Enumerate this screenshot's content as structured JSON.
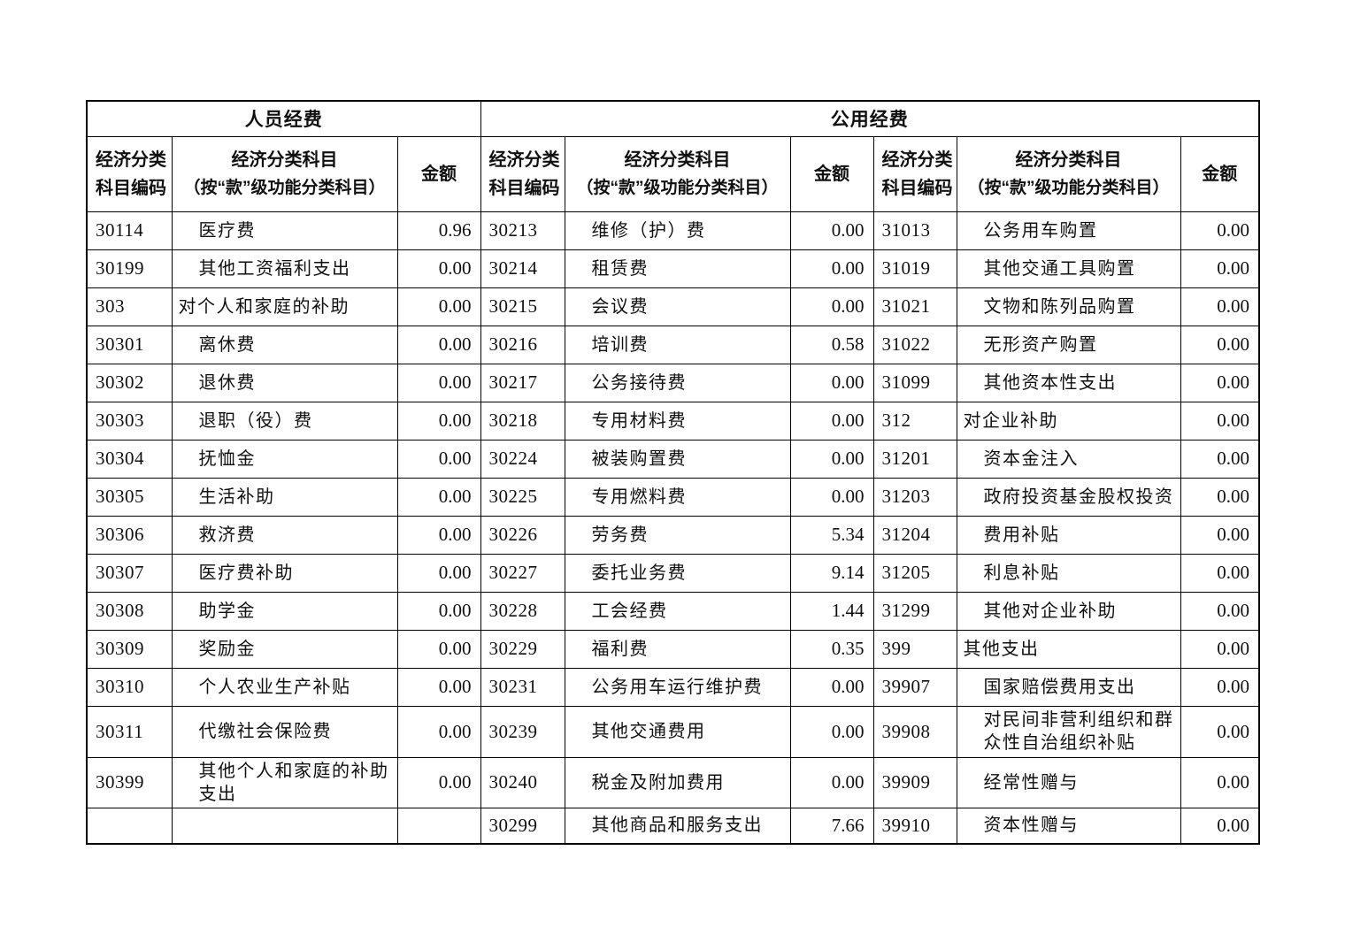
{
  "table": {
    "groups": [
      {
        "header": "人员经费"
      },
      {
        "header": "公用经费"
      }
    ],
    "column_headers": {
      "code": [
        "经济分类",
        "科目编码"
      ],
      "subject": [
        "经济分类科目",
        "（按“款”级功能分类科目）"
      ],
      "amount": "金额"
    },
    "rows": [
      {
        "left": {
          "code": "30114",
          "subject": "医疗费",
          "amount": "0.96",
          "indent": 1
        },
        "mid": {
          "code": "30213",
          "subject": "维修（护）费",
          "amount": "0.00",
          "indent": 1
        },
        "right": {
          "code": "31013",
          "subject": "公务用车购置",
          "amount": "0.00",
          "indent": 1
        }
      },
      {
        "left": {
          "code": "30199",
          "subject": "其他工资福利支出",
          "amount": "0.00",
          "indent": 1
        },
        "mid": {
          "code": "30214",
          "subject": "租赁费",
          "amount": "0.00",
          "indent": 1
        },
        "right": {
          "code": "31019",
          "subject": "其他交通工具购置",
          "amount": "0.00",
          "indent": 1
        }
      },
      {
        "left": {
          "code": "303",
          "subject": "对个人和家庭的补助",
          "amount": "0.00",
          "indent": 0
        },
        "mid": {
          "code": "30215",
          "subject": "会议费",
          "amount": "0.00",
          "indent": 1
        },
        "right": {
          "code": "31021",
          "subject": "文物和陈列品购置",
          "amount": "0.00",
          "indent": 1
        }
      },
      {
        "left": {
          "code": "30301",
          "subject": "离休费",
          "amount": "0.00",
          "indent": 1
        },
        "mid": {
          "code": "30216",
          "subject": "培训费",
          "amount": "0.58",
          "indent": 1
        },
        "right": {
          "code": "31022",
          "subject": "无形资产购置",
          "amount": "0.00",
          "indent": 1
        }
      },
      {
        "left": {
          "code": "30302",
          "subject": "退休费",
          "amount": "0.00",
          "indent": 1
        },
        "mid": {
          "code": "30217",
          "subject": "公务接待费",
          "amount": "0.00",
          "indent": 1
        },
        "right": {
          "code": "31099",
          "subject": "其他资本性支出",
          "amount": "0.00",
          "indent": 1
        }
      },
      {
        "left": {
          "code": "30303",
          "subject": "退职（役）费",
          "amount": "0.00",
          "indent": 1
        },
        "mid": {
          "code": "30218",
          "subject": "专用材料费",
          "amount": "0.00",
          "indent": 1
        },
        "right": {
          "code": "312",
          "subject": "对企业补助",
          "amount": "0.00",
          "indent": 0
        }
      },
      {
        "left": {
          "code": "30304",
          "subject": "抚恤金",
          "amount": "0.00",
          "indent": 1
        },
        "mid": {
          "code": "30224",
          "subject": "被装购置费",
          "amount": "0.00",
          "indent": 1
        },
        "right": {
          "code": "31201",
          "subject": "资本金注入",
          "amount": "0.00",
          "indent": 1
        }
      },
      {
        "left": {
          "code": "30305",
          "subject": "生活补助",
          "amount": "0.00",
          "indent": 1
        },
        "mid": {
          "code": "30225",
          "subject": "专用燃料费",
          "amount": "0.00",
          "indent": 1
        },
        "right": {
          "code": "31203",
          "subject": "政府投资基金股权投资",
          "amount": "0.00",
          "indent": 1
        }
      },
      {
        "left": {
          "code": "30306",
          "subject": "救济费",
          "amount": "0.00",
          "indent": 1
        },
        "mid": {
          "code": "30226",
          "subject": "劳务费",
          "amount": "5.34",
          "indent": 1
        },
        "right": {
          "code": "31204",
          "subject": "费用补贴",
          "amount": "0.00",
          "indent": 1
        }
      },
      {
        "left": {
          "code": "30307",
          "subject": "医疗费补助",
          "amount": "0.00",
          "indent": 1
        },
        "mid": {
          "code": "30227",
          "subject": "委托业务费",
          "amount": "9.14",
          "indent": 1
        },
        "right": {
          "code": "31205",
          "subject": "利息补贴",
          "amount": "0.00",
          "indent": 1
        }
      },
      {
        "left": {
          "code": "30308",
          "subject": "助学金",
          "amount": "0.00",
          "indent": 1
        },
        "mid": {
          "code": "30228",
          "subject": "工会经费",
          "amount": "1.44",
          "indent": 1
        },
        "right": {
          "code": "31299",
          "subject": "其他对企业补助",
          "amount": "0.00",
          "indent": 1
        }
      },
      {
        "left": {
          "code": "30309",
          "subject": "奖励金",
          "amount": "0.00",
          "indent": 1
        },
        "mid": {
          "code": "30229",
          "subject": "福利费",
          "amount": "0.35",
          "indent": 1
        },
        "right": {
          "code": "399",
          "subject": "其他支出",
          "amount": "0.00",
          "indent": 0
        }
      },
      {
        "left": {
          "code": "30310",
          "subject": "个人农业生产补贴",
          "amount": "0.00",
          "indent": 1
        },
        "mid": {
          "code": "30231",
          "subject": "公务用车运行维护费",
          "amount": "0.00",
          "indent": 1
        },
        "right": {
          "code": "39907",
          "subject": "国家赔偿费用支出",
          "amount": "0.00",
          "indent": 1
        }
      },
      {
        "left": {
          "code": "30311",
          "subject": "代缴社会保险费",
          "amount": "0.00",
          "indent": 1
        },
        "mid": {
          "code": "30239",
          "subject": "其他交通费用",
          "amount": "0.00",
          "indent": 1
        },
        "right": {
          "code": "39908",
          "subject": "对民间非营利组织和群众性自治组织补贴",
          "amount": "0.00",
          "indent": 1
        }
      },
      {
        "left": {
          "code": "30399",
          "subject": "其他个人和家庭的补助支出",
          "amount": "0.00",
          "indent": 1
        },
        "mid": {
          "code": "30240",
          "subject": "税金及附加费用",
          "amount": "0.00",
          "indent": 1
        },
        "right": {
          "code": "39909",
          "subject": "经常性赠与",
          "amount": "0.00",
          "indent": 1
        }
      },
      {
        "left": {
          "code": "",
          "subject": "",
          "amount": "",
          "indent": 0
        },
        "mid": {
          "code": "30299",
          "subject": "其他商品和服务支出",
          "amount": "7.66",
          "indent": 1
        },
        "right": {
          "code": "39910",
          "subject": "资本性赠与",
          "amount": "0.00",
          "indent": 1
        }
      }
    ]
  }
}
